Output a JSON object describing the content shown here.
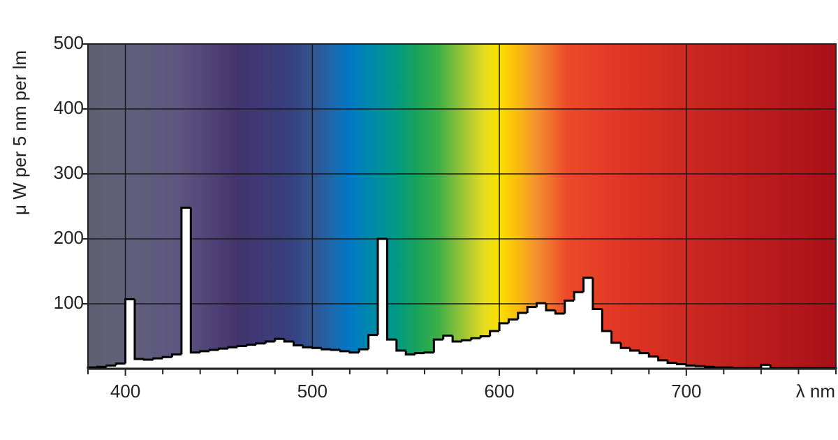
{
  "chart_data": {
    "type": "histogram",
    "xlabel": "λ nm",
    "ylabel": "μ W per 5 nm per lm",
    "bins": [
      380,
      385,
      390,
      395,
      400,
      405,
      410,
      415,
      420,
      425,
      430,
      435,
      440,
      445,
      450,
      455,
      460,
      465,
      470,
      475,
      480,
      485,
      490,
      495,
      500,
      505,
      510,
      515,
      520,
      525,
      530,
      535,
      540,
      545,
      550,
      555,
      560,
      565,
      570,
      575,
      580,
      585,
      590,
      595,
      600,
      605,
      610,
      615,
      620,
      625,
      630,
      635,
      640,
      645,
      650,
      655,
      660,
      665,
      670,
      675,
      680,
      685,
      690,
      695,
      700,
      705,
      710,
      715,
      720,
      725,
      730,
      735,
      740,
      745,
      750,
      755,
      760,
      765,
      770,
      775,
      780
    ],
    "values": [
      2,
      3,
      5,
      8,
      107,
      15,
      14,
      16,
      18,
      22,
      248,
      25,
      27,
      29,
      31,
      33,
      35,
      37,
      39,
      42,
      46,
      42,
      36,
      33,
      32,
      30,
      29,
      27,
      25,
      30,
      52,
      200,
      45,
      28,
      22,
      24,
      25,
      45,
      51,
      42,
      44,
      47,
      50,
      58,
      70,
      76,
      86,
      95,
      101,
      90,
      85,
      105,
      118,
      140,
      92,
      58,
      40,
      32,
      28,
      24,
      19,
      13,
      9,
      7,
      5,
      4,
      3,
      2,
      2,
      1,
      1,
      1,
      6,
      1,
      1,
      1,
      1,
      1,
      1,
      1
    ],
    "color": "#ffffff",
    "edge_color": "#000000",
    "xlim": [
      380,
      780
    ],
    "xticks": [
      400,
      500,
      600,
      700
    ],
    "xminor_ticks": [
      380,
      420,
      440,
      460,
      480,
      520,
      540,
      560,
      580,
      620,
      640,
      660,
      680,
      720,
      740,
      760,
      780
    ],
    "ylim": [
      0,
      500
    ],
    "yticks": [
      100,
      200,
      300,
      400,
      500
    ],
    "grid": true
  }
}
